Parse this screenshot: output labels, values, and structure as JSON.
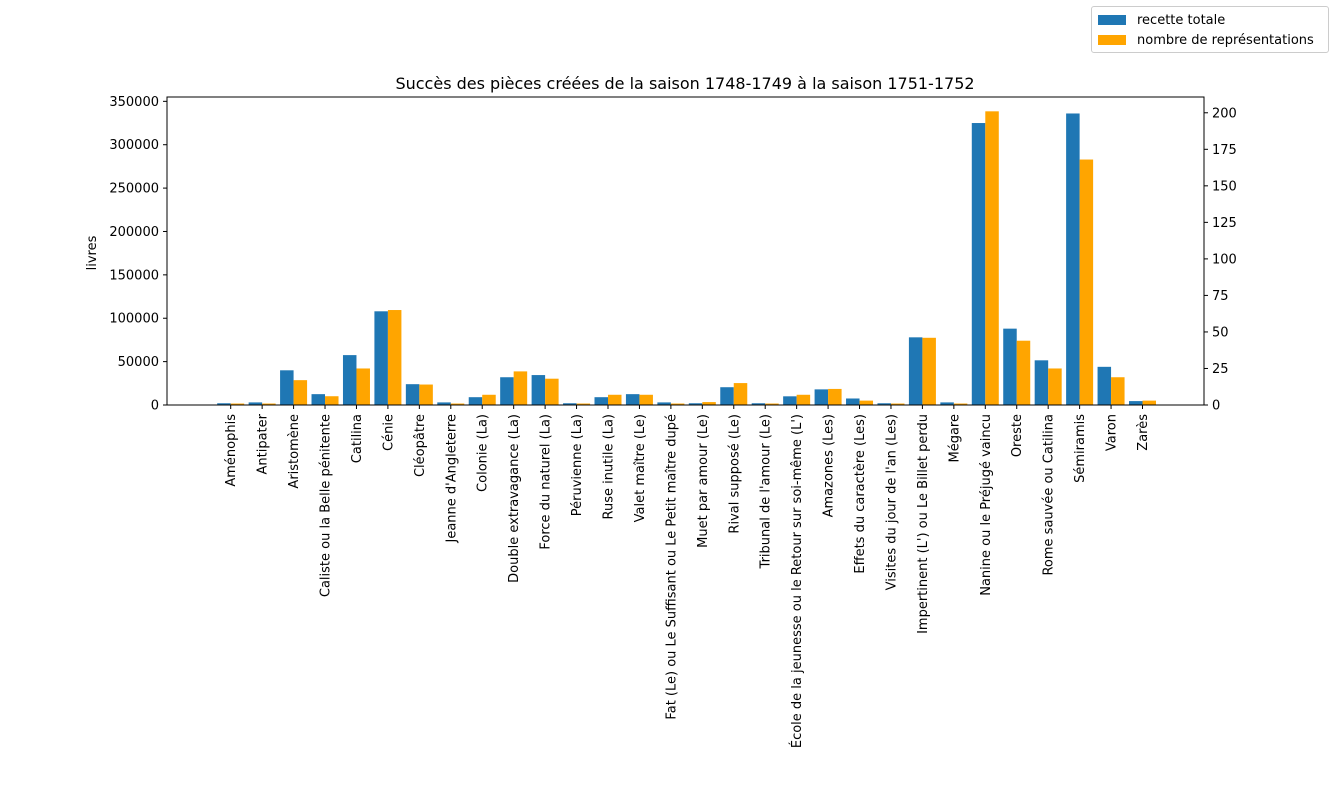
{
  "chart_data": {
    "type": "bar",
    "title": "Succès des pièces créées de la saison 1748-1749 à la saison 1751-1752",
    "ylabel": "livres",
    "ylabel_right": "",
    "xlabel": "",
    "ylim": [
      0,
      355000
    ],
    "ylim_right": [
      0,
      210.8
    ],
    "yticks": [
      0,
      50000,
      100000,
      150000,
      200000,
      250000,
      300000,
      350000
    ],
    "yticks_right": [
      0,
      25,
      50,
      75,
      100,
      125,
      150,
      175,
      200
    ],
    "legend_position": "top-right",
    "grid": false,
    "categories": [
      "Aménophis",
      "Antipater",
      "Aristomène",
      "Caliste ou la Belle pénitente",
      "Catilina",
      "Cénie",
      "Cléopâtre",
      "Jeanne d'Angleterre",
      "Colonie (La)",
      "Double extravagance (La)",
      "Force du naturel (La)",
      "Péruvienne (La)",
      "Ruse inutile (La)",
      "Valet maître (Le)",
      "Fat (Le) ou Le Suffisant ou Le Petit maître dupé",
      "Muet par amour (Le)",
      "Rival supposé (Le)",
      "Tribunal de l'amour (Le)",
      "École de la jeunesse ou le Retour sur soi-même (L')",
      "Amazones (Les)",
      "Effets du caractère (Les)",
      "Visites du jour de l'an (Les)",
      "Impertinent (L') ou Le Billet perdu",
      "Mégare",
      "Nanine ou le Préjugé vaincu",
      "Oreste",
      "Rome sauvée ou Catilina",
      "Sémiramis",
      "Varon",
      "Zarès"
    ],
    "series": [
      {
        "name": "recette totale",
        "axis": "left",
        "color": "#1f77b4",
        "values": [
          2000,
          3000,
          40000,
          12500,
          57500,
          108000,
          24000,
          3000,
          9000,
          32000,
          34500,
          2000,
          9000,
          12500,
          3000,
          2000,
          20500,
          2000,
          10000,
          18000,
          7500,
          2000,
          78000,
          3000,
          325000,
          88000,
          51500,
          336000,
          44000,
          4500
        ]
      },
      {
        "name": "nombre de représentations",
        "axis": "right",
        "color": "#ffa500",
        "values": [
          1,
          1,
          17,
          6,
          25,
          65,
          14,
          1,
          7,
          23,
          18,
          1,
          7,
          7,
          1,
          2,
          15,
          1,
          7,
          11,
          3,
          1,
          46,
          1,
          201,
          44,
          25,
          168,
          19,
          3
        ]
      }
    ]
  }
}
